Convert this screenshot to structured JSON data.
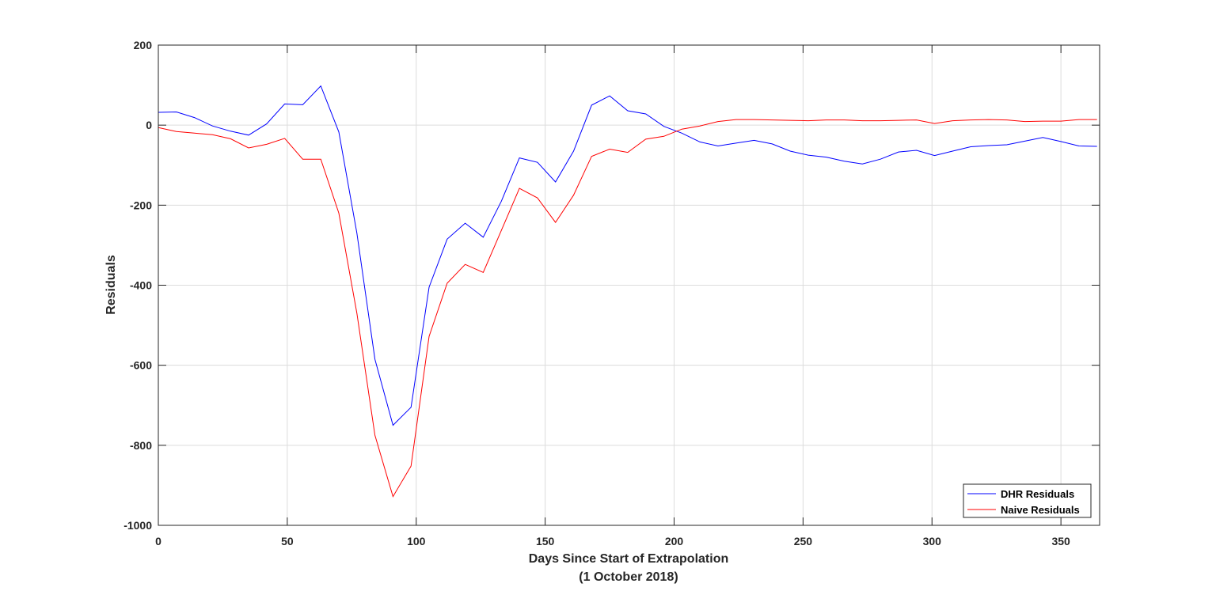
{
  "chart_data": {
    "type": "line",
    "title": "",
    "xlabel": "Days Since Start of Extrapolation",
    "xlabel_line2": "(1 October 2018)",
    "ylabel": "Residuals",
    "xlim": [
      0,
      365
    ],
    "ylim": [
      -1000,
      200
    ],
    "xticks": [
      0,
      50,
      100,
      150,
      200,
      250,
      300,
      350
    ],
    "yticks": [
      200,
      0,
      -200,
      -400,
      -600,
      -800,
      -1000
    ],
    "grid": true,
    "legend": "bottom-right",
    "series": [
      {
        "name": "DHR Residuals",
        "color": "#0000ff",
        "x": [
          0,
          7,
          14,
          21,
          28,
          35,
          42,
          49,
          56,
          63,
          70,
          77,
          84,
          91,
          98,
          105,
          112,
          119,
          126,
          133,
          140,
          147,
          154,
          161,
          168,
          175,
          182,
          189,
          196,
          203,
          210,
          217,
          224,
          231,
          238,
          245,
          252,
          259,
          266,
          273,
          280,
          287,
          294,
          301,
          308,
          315,
          322,
          329,
          336,
          343,
          350,
          357,
          364
        ],
        "values": [
          32,
          33,
          19,
          -2,
          -15,
          -25,
          3,
          53,
          51,
          98,
          -17,
          -270,
          -585,
          -750,
          -705,
          -405,
          -285,
          -245,
          -280,
          -190,
          -82,
          -93,
          -142,
          -65,
          50,
          73,
          36,
          28,
          -3,
          -20,
          -42,
          -52,
          -45,
          -38,
          -47,
          -65,
          -75,
          -80,
          -90,
          -97,
          -85,
          -67,
          -63,
          -76,
          -65,
          -54,
          -51,
          -49,
          -40,
          -31,
          -41,
          -52,
          -53
        ]
      },
      {
        "name": "Naive Residuals",
        "color": "#ff0000",
        "x": [
          0,
          7,
          14,
          21,
          28,
          35,
          42,
          49,
          56,
          63,
          70,
          77,
          84,
          91,
          98,
          105,
          112,
          119,
          126,
          133,
          140,
          147,
          154,
          161,
          168,
          175,
          182,
          189,
          196,
          203,
          210,
          217,
          224,
          231,
          238,
          245,
          252,
          259,
          266,
          273,
          280,
          287,
          294,
          301,
          308,
          315,
          322,
          329,
          336,
          343,
          350,
          357,
          364
        ],
        "values": [
          -6,
          -16,
          -20,
          -24,
          -34,
          -57,
          -48,
          -33,
          -85,
          -85,
          -220,
          -470,
          -775,
          -928,
          -852,
          -528,
          -395,
          -348,
          -368,
          -263,
          -158,
          -182,
          -243,
          -175,
          -78,
          -60,
          -68,
          -35,
          -28,
          -10,
          -2,
          9,
          14,
          14,
          13,
          12,
          11,
          13,
          13,
          11,
          11,
          12,
          13,
          4,
          11,
          13,
          14,
          13,
          9,
          10,
          10,
          14,
          14
        ]
      }
    ]
  }
}
